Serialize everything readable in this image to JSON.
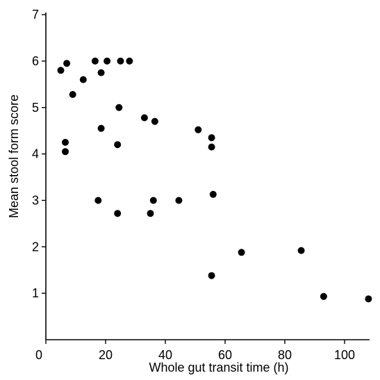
{
  "chart_data": {
    "type": "scatter",
    "title": "",
    "xlabel": "Whole gut transit time (h)",
    "ylabel": "Mean stool form score",
    "xlim": [
      0,
      110
    ],
    "ylim": [
      0,
      7
    ],
    "x_ticks": [
      0,
      20,
      40,
      60,
      80,
      100
    ],
    "y_ticks": [
      1,
      2,
      3,
      4,
      5,
      6,
      7
    ],
    "x_tick_labels": [
      "0",
      "20",
      "40",
      "60",
      "80",
      "100"
    ],
    "y_tick_labels": [
      "1",
      "2",
      "3",
      "4",
      "5",
      "6",
      "7"
    ],
    "grid": false,
    "legend": "none",
    "marker_color": "#000000",
    "points": [
      {
        "x": 5,
        "y": 5.8
      },
      {
        "x": 7,
        "y": 5.95
      },
      {
        "x": 9,
        "y": 5.28
      },
      {
        "x": 12.5,
        "y": 5.6
      },
      {
        "x": 16.5,
        "y": 6.0
      },
      {
        "x": 18.5,
        "y": 5.75
      },
      {
        "x": 20.5,
        "y": 6.0
      },
      {
        "x": 25,
        "y": 6.0
      },
      {
        "x": 28,
        "y": 6.0
      },
      {
        "x": 24.5,
        "y": 5.0
      },
      {
        "x": 33,
        "y": 4.78
      },
      {
        "x": 36.5,
        "y": 4.7
      },
      {
        "x": 18.5,
        "y": 4.55
      },
      {
        "x": 6.5,
        "y": 4.25
      },
      {
        "x": 6.5,
        "y": 4.05
      },
      {
        "x": 24,
        "y": 4.2
      },
      {
        "x": 51,
        "y": 4.52
      },
      {
        "x": 55.5,
        "y": 4.35
      },
      {
        "x": 55.5,
        "y": 4.15
      },
      {
        "x": 17.5,
        "y": 3.0
      },
      {
        "x": 24,
        "y": 2.72
      },
      {
        "x": 35,
        "y": 2.72
      },
      {
        "x": 36,
        "y": 3.0
      },
      {
        "x": 44.5,
        "y": 3.0
      },
      {
        "x": 56,
        "y": 3.13
      },
      {
        "x": 65.5,
        "y": 1.88
      },
      {
        "x": 85.5,
        "y": 1.92
      },
      {
        "x": 55.5,
        "y": 1.38
      },
      {
        "x": 93,
        "y": 0.93
      },
      {
        "x": 108,
        "y": 0.88
      }
    ]
  }
}
